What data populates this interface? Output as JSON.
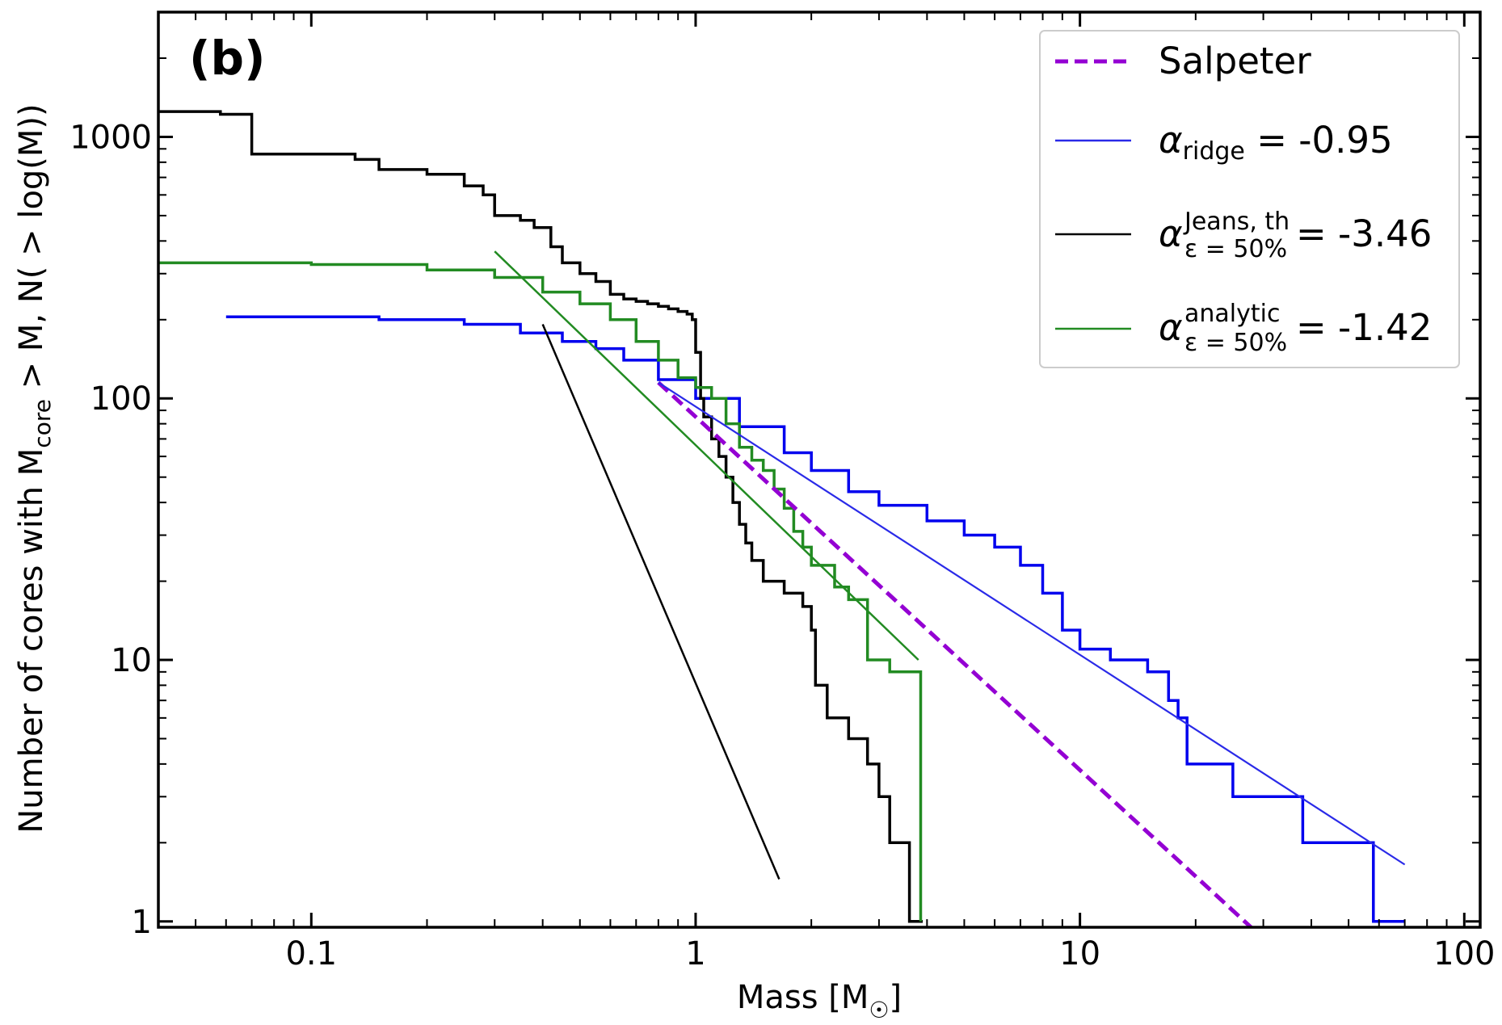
{
  "chart_data": {
    "type": "line",
    "panel_label": "(b)",
    "xlabel": "Mass [M",
    "xlabel_symbol": "☉",
    "xlabel_close": "]",
    "ylabel": "Number of cores with M",
    "ylabel_sub": "core",
    "ylabel_rest": " > M, N( > log(M))",
    "x_scale": "log",
    "y_scale": "log",
    "xlim": [
      0.04,
      110
    ],
    "ylim": [
      0.95,
      3000
    ],
    "x_ticks": [
      {
        "value": 0.1,
        "label": "0.1"
      },
      {
        "value": 1,
        "label": "1"
      },
      {
        "value": 10,
        "label": "10"
      },
      {
        "value": 100,
        "label": "100"
      }
    ],
    "y_ticks": [
      {
        "value": 1,
        "label": "1"
      },
      {
        "value": 10,
        "label": "10"
      },
      {
        "value": 100,
        "label": "100"
      },
      {
        "value": 1000,
        "label": "1000"
      }
    ],
    "legend_position": "top-right",
    "legend": [
      {
        "key": "salpeter",
        "main": "Salpeter",
        "color": "#9400d3",
        "dash": true
      },
      {
        "key": "ridge",
        "symbol": "α",
        "sub": "ridge",
        "sup": "",
        "value": " = -0.95",
        "color": "#2a2ae8"
      },
      {
        "key": "jeans",
        "symbol": "α",
        "sub": "ε = 50%",
        "sup": "Jeans, th",
        "value": " = -3.46",
        "color": "#000000"
      },
      {
        "key": "analytic",
        "symbol": "α",
        "sub": "ε = 50%",
        "sup": "analytic",
        "value": " = -1.42",
        "color": "#228b22"
      }
    ],
    "series": [
      {
        "key": "ridge",
        "color": "#0000ee",
        "step": true,
        "points": [
          [
            0.06,
            205
          ],
          [
            0.15,
            200
          ],
          [
            0.25,
            192
          ],
          [
            0.35,
            178
          ],
          [
            0.45,
            165
          ],
          [
            0.55,
            155
          ],
          [
            0.65,
            140
          ],
          [
            0.8,
            118
          ],
          [
            1.0,
            100
          ],
          [
            1.3,
            78
          ],
          [
            1.7,
            62
          ],
          [
            2.0,
            53
          ],
          [
            2.5,
            44
          ],
          [
            3.0,
            39
          ],
          [
            4.0,
            34
          ],
          [
            5.0,
            30
          ],
          [
            6.0,
            27
          ],
          [
            7.0,
            23
          ],
          [
            8.0,
            18
          ],
          [
            9.0,
            13
          ],
          [
            10.0,
            11
          ],
          [
            12.0,
            10
          ],
          [
            15.0,
            9
          ],
          [
            17.0,
            7
          ],
          [
            18.0,
            6
          ],
          [
            19.0,
            4
          ],
          [
            25.0,
            3
          ],
          [
            38.0,
            2
          ],
          [
            58.0,
            1
          ],
          [
            70.0,
            1
          ]
        ]
      },
      {
        "key": "jeans",
        "color": "#000000",
        "step": true,
        "points": [
          [
            0.04,
            1250
          ],
          [
            0.055,
            1250
          ],
          [
            0.058,
            1220
          ],
          [
            0.07,
            860
          ],
          [
            0.13,
            820
          ],
          [
            0.15,
            750
          ],
          [
            0.2,
            720
          ],
          [
            0.25,
            650
          ],
          [
            0.28,
            600
          ],
          [
            0.3,
            500
          ],
          [
            0.35,
            480
          ],
          [
            0.38,
            450
          ],
          [
            0.42,
            380
          ],
          [
            0.45,
            330
          ],
          [
            0.5,
            300
          ],
          [
            0.55,
            280
          ],
          [
            0.6,
            250
          ],
          [
            0.65,
            240
          ],
          [
            0.7,
            235
          ],
          [
            0.75,
            230
          ],
          [
            0.8,
            225
          ],
          [
            0.85,
            220
          ],
          [
            0.9,
            215
          ],
          [
            0.95,
            210
          ],
          [
            0.98,
            200
          ],
          [
            1.0,
            195
          ],
          [
            1.0,
            150
          ],
          [
            1.03,
            100
          ],
          [
            1.05,
            85
          ],
          [
            1.1,
            70
          ],
          [
            1.15,
            60
          ],
          [
            1.2,
            50
          ],
          [
            1.25,
            40
          ],
          [
            1.3,
            33
          ],
          [
            1.35,
            28
          ],
          [
            1.4,
            24
          ],
          [
            1.5,
            20
          ],
          [
            1.7,
            18
          ],
          [
            1.9,
            16
          ],
          [
            2.0,
            13
          ],
          [
            2.05,
            8
          ],
          [
            2.2,
            6
          ],
          [
            2.5,
            5
          ],
          [
            2.8,
            4
          ],
          [
            3.0,
            3
          ],
          [
            3.2,
            2
          ],
          [
            3.5,
            2
          ],
          [
            3.6,
            1
          ],
          [
            3.9,
            1
          ]
        ]
      },
      {
        "key": "analytic",
        "color": "#228b22",
        "step": true,
        "points": [
          [
            0.04,
            330
          ],
          [
            0.1,
            325
          ],
          [
            0.2,
            310
          ],
          [
            0.3,
            290
          ],
          [
            0.4,
            255
          ],
          [
            0.5,
            230
          ],
          [
            0.6,
            200
          ],
          [
            0.7,
            165
          ],
          [
            0.8,
            140
          ],
          [
            0.9,
            120
          ],
          [
            1.0,
            110
          ],
          [
            1.1,
            100
          ],
          [
            1.2,
            80
          ],
          [
            1.3,
            65
          ],
          [
            1.4,
            58
          ],
          [
            1.5,
            53
          ],
          [
            1.6,
            45
          ],
          [
            1.7,
            38
          ],
          [
            1.8,
            31
          ],
          [
            1.9,
            27
          ],
          [
            2.0,
            23
          ],
          [
            2.3,
            19
          ],
          [
            2.5,
            17
          ],
          [
            2.8,
            10
          ],
          [
            3.2,
            9
          ],
          [
            3.85,
            9
          ],
          [
            3.85,
            1
          ]
        ]
      }
    ],
    "fits": [
      {
        "key": "salpeter",
        "color": "#9400d3",
        "dash": true,
        "width": 5,
        "points": [
          [
            0.8,
            115
          ],
          [
            29.0,
            0.9
          ]
        ]
      },
      {
        "key": "ridge",
        "color": "#2a2ae8",
        "dash": false,
        "width": 2.2,
        "points": [
          [
            0.8,
            115
          ],
          [
            70.0,
            1.65
          ]
        ]
      },
      {
        "key": "jeans",
        "color": "#000000",
        "dash": false,
        "width": 2.5,
        "points": [
          [
            0.4,
            192
          ],
          [
            1.65,
            1.45
          ]
        ]
      },
      {
        "key": "analytic",
        "color": "#228b22",
        "dash": false,
        "width": 2.5,
        "points": [
          [
            0.3,
            365
          ],
          [
            3.8,
            10
          ]
        ]
      }
    ]
  }
}
